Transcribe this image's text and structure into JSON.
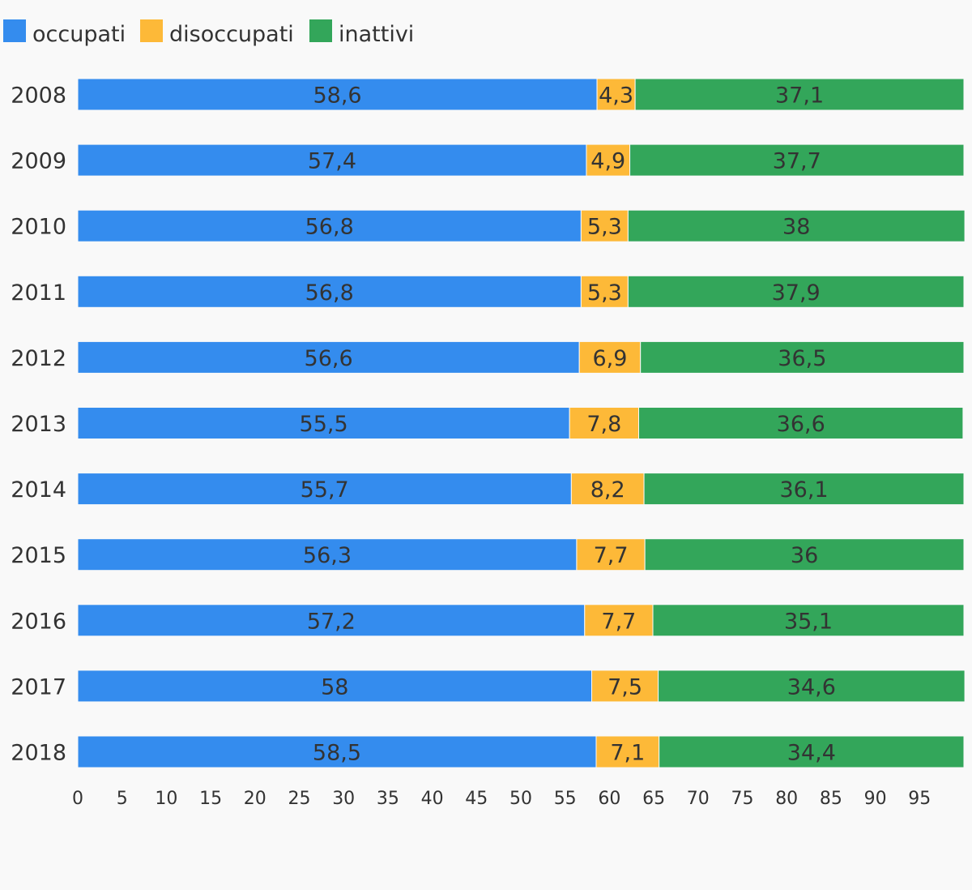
{
  "chart_data": {
    "type": "bar",
    "orientation": "horizontal",
    "stacked": true,
    "title": "",
    "xlabel": "",
    "ylabel": "",
    "categories": [
      "2008",
      "2009",
      "2010",
      "2011",
      "2012",
      "2013",
      "2014",
      "2015",
      "2016",
      "2017",
      "2018"
    ],
    "series": [
      {
        "name": "occupati",
        "color": "#348cee",
        "values": [
          58.6,
          57.4,
          56.8,
          56.8,
          56.6,
          55.5,
          55.7,
          56.3,
          57.2,
          58,
          58.5
        ],
        "labels": [
          "58,6",
          "57,4",
          "56,8",
          "56,8",
          "56,6",
          "55,5",
          "55,7",
          "56,3",
          "57,2",
          "58",
          "58,5"
        ]
      },
      {
        "name": "disoccupati",
        "color": "#fdb938",
        "values": [
          4.3,
          4.9,
          5.3,
          5.3,
          6.9,
          7.8,
          8.2,
          7.7,
          7.7,
          7.5,
          7.1
        ],
        "labels": [
          "4,3",
          "4,9",
          "5,3",
          "5,3",
          "6,9",
          "7,8",
          "8,2",
          "7,7",
          "7,7",
          "7,5",
          "7,1"
        ]
      },
      {
        "name": "inattivi",
        "color": "#33a65a",
        "values": [
          37.1,
          37.7,
          38,
          37.9,
          36.5,
          36.6,
          36.1,
          36,
          35.1,
          34.6,
          34.4
        ],
        "labels": [
          "37,1",
          "37,7",
          "38",
          "37,9",
          "36,5",
          "36,6",
          "36,1",
          "36",
          "35,1",
          "34,6",
          "34,4"
        ]
      }
    ],
    "x_ticks": [
      "0",
      "5",
      "10",
      "15",
      "20",
      "25",
      "30",
      "35",
      "40",
      "45",
      "50",
      "55",
      "60",
      "65",
      "70",
      "75",
      "80",
      "85",
      "90",
      "95"
    ],
    "xlim": [
      0,
      100
    ],
    "grid": false,
    "legend_position": "top-left"
  }
}
